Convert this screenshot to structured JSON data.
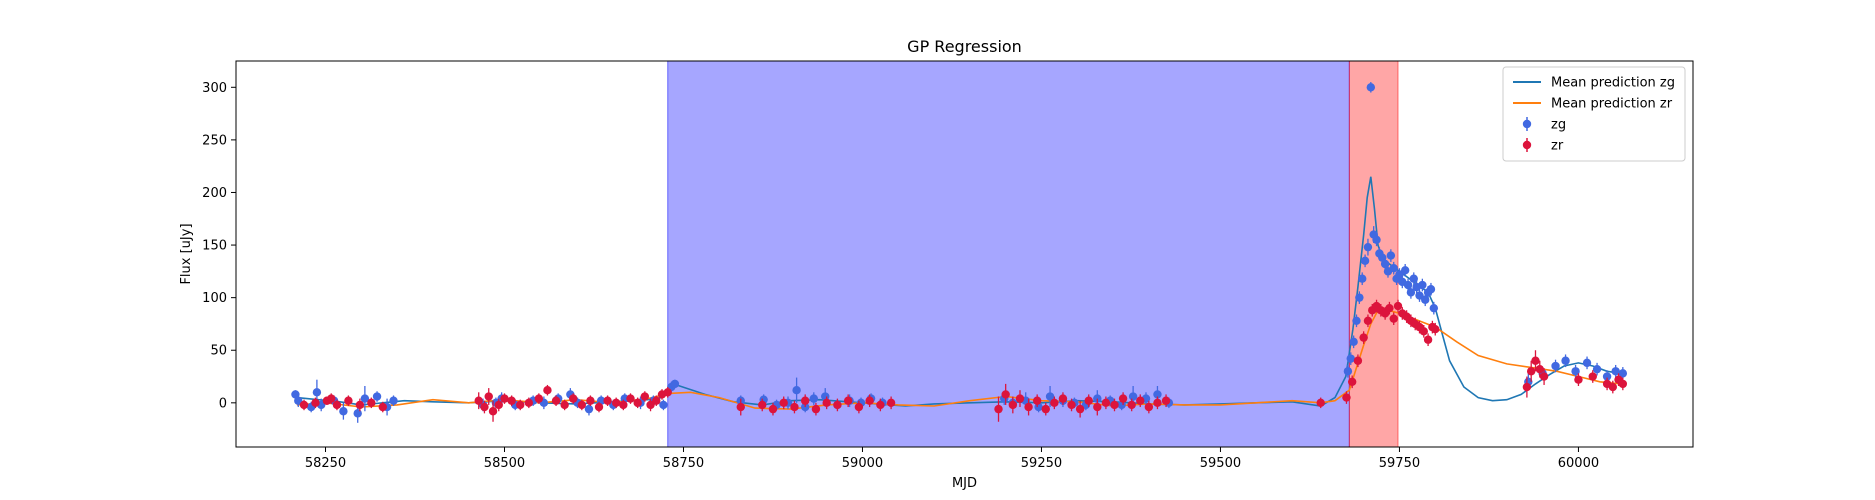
{
  "chart_data": {
    "type": "scatter",
    "title": "GP Regression",
    "xlabel": "MJD",
    "ylabel": "Flux [uJy]",
    "xlim": [
      58125,
      60160
    ],
    "ylim": [
      -42,
      325
    ],
    "xticks": [
      58250,
      58500,
      58750,
      59000,
      59250,
      59500,
      59750,
      60000
    ],
    "yticks": [
      0,
      50,
      100,
      150,
      200,
      250,
      300
    ],
    "grid": false,
    "legend_position": "top-right",
    "colors": {
      "zg_line": "#1f77b4",
      "zr_line": "#ff7f0e",
      "zg_points": "#4169e1",
      "zr_points": "#dc143c",
      "span_blue": "#0000ff",
      "span_red": "#ff0000"
    },
    "spans": [
      {
        "x0": 58728,
        "x1": 59680,
        "color": "#0000ff",
        "opacity": 0.35
      },
      {
        "x0": 59680,
        "x1": 59748,
        "color": "#ff0000",
        "opacity": 0.35
      }
    ],
    "legend": [
      {
        "label": "Mean prediction zg",
        "kind": "line",
        "color": "#1f77b4"
      },
      {
        "label": "Mean prediction zr",
        "kind": "line",
        "color": "#ff7f0e"
      },
      {
        "label": "zg",
        "kind": "errorbar",
        "color": "#4169e1"
      },
      {
        "label": "zr",
        "kind": "errorbar",
        "color": "#dc143c"
      }
    ],
    "series": [
      {
        "name": "Mean prediction zg",
        "kind": "line",
        "color": "#1f77b4",
        "x": [
          58210,
          58240,
          58270,
          58300,
          58330,
          58360,
          58400,
          58450,
          58500,
          58550,
          58600,
          58650,
          58700,
          58720,
          58740,
          58780,
          58820,
          58860,
          58900,
          58940,
          58980,
          59020,
          59060,
          59100,
          59150,
          59200,
          59250,
          59300,
          59350,
          59400,
          59450,
          59500,
          59550,
          59600,
          59640,
          59660,
          59675,
          59685,
          59692,
          59700,
          59705,
          59710,
          59715,
          59720,
          59725,
          59730,
          59740,
          59760,
          59780,
          59790,
          59800,
          59810,
          59820,
          59840,
          59860,
          59880,
          59900,
          59920,
          59940,
          59960,
          59980,
          60000,
          60020,
          60040,
          60060
        ],
        "y": [
          5,
          3,
          1,
          -2,
          0,
          2,
          1,
          0,
          2,
          0,
          -1,
          1,
          3,
          5,
          17,
          8,
          1,
          -2,
          2,
          3,
          1,
          -1,
          -3,
          -1,
          0,
          1,
          0,
          2,
          1,
          -1,
          -2,
          -1,
          0,
          1,
          -3,
          5,
          25,
          70,
          110,
          160,
          195,
          215,
          185,
          150,
          140,
          135,
          130,
          120,
          110,
          105,
          90,
          65,
          40,
          15,
          5,
          2,
          3,
          8,
          18,
          27,
          35,
          38,
          35,
          30,
          28
        ]
      },
      {
        "name": "Mean prediction zr",
        "kind": "line",
        "color": "#ff7f0e",
        "x": [
          58210,
          58250,
          58300,
          58350,
          58400,
          58450,
          58500,
          58550,
          58600,
          58650,
          58700,
          58730,
          58760,
          58800,
          58850,
          58900,
          58950,
          59000,
          59050,
          59100,
          59150,
          59200,
          59250,
          59300,
          59350,
          59400,
          59450,
          59500,
          59550,
          59600,
          59640,
          59660,
          59680,
          59700,
          59710,
          59720,
          59735,
          59750,
          59770,
          59800,
          59830,
          59860,
          59900,
          59940,
          59970,
          60000,
          60030,
          60060
        ],
        "y": [
          -2,
          0,
          -4,
          -2,
          3,
          0,
          3,
          0,
          3,
          0,
          4,
          9,
          10,
          5,
          -5,
          -6,
          -2,
          0,
          -2,
          -3,
          2,
          6,
          2,
          1,
          -3,
          -1,
          -2,
          -2,
          0,
          2,
          0,
          2,
          12,
          55,
          75,
          88,
          88,
          85,
          80,
          72,
          58,
          45,
          37,
          33,
          30,
          25,
          20,
          18
        ]
      },
      {
        "name": "zg",
        "kind": "errorbar",
        "color": "#4169e1",
        "x": [
          58208,
          58212,
          58230,
          58238,
          58244,
          58262,
          58275,
          58295,
          58305,
          58322,
          58336,
          58345,
          58470,
          58488,
          58496,
          58515,
          58540,
          58555,
          58575,
          58592,
          58602,
          58618,
          58635,
          58652,
          58668,
          58690,
          58708,
          58722,
          58733,
          58738,
          58830,
          58862,
          58880,
          58896,
          58908,
          58920,
          58932,
          58948,
          58965,
          58982,
          58998,
          59012,
          59028,
          59198,
          59210,
          59228,
          59246,
          59262,
          59280,
          59296,
          59312,
          59328,
          59346,
          59362,
          59378,
          59396,
          59412,
          59428,
          59678,
          59682,
          59686,
          59690,
          59694,
          59698,
          59702,
          59706,
          59710,
          59714,
          59718,
          59722,
          59726,
          59730,
          59734,
          59738,
          59742,
          59746,
          59750,
          59754,
          59758,
          59762,
          59766,
          59770,
          59774,
          59778,
          59782,
          59786,
          59790,
          59794,
          59798,
          59930,
          59950,
          59968,
          59982,
          59996,
          60012,
          60026,
          60040,
          60052,
          60062
        ],
        "y": [
          8,
          2,
          -4,
          10,
          -2,
          2,
          -8,
          -10,
          4,
          6,
          -4,
          2,
          -2,
          0,
          4,
          -2,
          2,
          0,
          4,
          8,
          0,
          -6,
          2,
          -2,
          4,
          0,
          2,
          -2,
          15,
          18,
          2,
          3,
          -2,
          0,
          12,
          -4,
          4,
          6,
          -2,
          2,
          0,
          4,
          0,
          4,
          0,
          2,
          -4,
          6,
          2,
          0,
          -2,
          4,
          2,
          -2,
          6,
          4,
          8,
          0,
          30,
          42,
          58,
          78,
          100,
          118,
          135,
          148,
          300,
          160,
          155,
          142,
          138,
          132,
          125,
          140,
          128,
          118,
          122,
          115,
          126,
          112,
          105,
          118,
          110,
          102,
          112,
          98,
          105,
          108,
          90,
          20,
          28,
          35,
          40,
          30,
          38,
          32,
          25,
          30,
          28
        ],
        "yerr": [
          4,
          6,
          5,
          12,
          6,
          5,
          8,
          9,
          12,
          5,
          8,
          5,
          6,
          5,
          6,
          5,
          5,
          6,
          5,
          6,
          5,
          6,
          5,
          5,
          5,
          6,
          5,
          5,
          5,
          4,
          5,
          5,
          5,
          6,
          12,
          5,
          6,
          8,
          5,
          6,
          5,
          5,
          5,
          6,
          5,
          8,
          5,
          10,
          6,
          5,
          5,
          8,
          5,
          5,
          10,
          6,
          8,
          5,
          6,
          6,
          6,
          6,
          6,
          6,
          6,
          8,
          5,
          8,
          6,
          6,
          6,
          6,
          6,
          6,
          6,
          6,
          6,
          6,
          6,
          6,
          6,
          6,
          6,
          6,
          6,
          6,
          6,
          6,
          6,
          8,
          6,
          6,
          6,
          6,
          6,
          6,
          6,
          6,
          6
        ]
      },
      {
        "name": "zr",
        "kind": "errorbar",
        "color": "#dc143c",
        "x": [
          58220,
          58236,
          58252,
          58258,
          58266,
          58282,
          58298,
          58314,
          58330,
          58464,
          58472,
          58478,
          58484,
          58492,
          58500,
          58510,
          58522,
          58534,
          58548,
          58560,
          58572,
          58584,
          58596,
          58608,
          58620,
          58632,
          58644,
          58656,
          58666,
          58676,
          58686,
          58696,
          58704,
          58712,
          58720,
          58728,
          58830,
          58860,
          58875,
          58890,
          58905,
          58920,
          58935,
          58950,
          58965,
          58980,
          58995,
          59010,
          59025,
          59040,
          59190,
          59200,
          59210,
          59220,
          59232,
          59244,
          59256,
          59268,
          59280,
          59292,
          59304,
          59316,
          59328,
          59340,
          59352,
          59364,
          59376,
          59388,
          59400,
          59412,
          59424,
          59640,
          59676,
          59684,
          59692,
          59700,
          59706,
          59712,
          59718,
          59724,
          59730,
          59736,
          59742,
          59748,
          59754,
          59760,
          59766,
          59772,
          59778,
          59784,
          59790,
          59796,
          59800,
          59928,
          59934,
          59940,
          59946,
          59952,
          60000,
          60020,
          60040,
          60048,
          60056,
          60062
        ],
        "y": [
          -2,
          0,
          2,
          4,
          -2,
          2,
          -2,
          0,
          -4,
          2,
          -4,
          6,
          -8,
          -2,
          4,
          2,
          -2,
          0,
          4,
          12,
          2,
          -2,
          4,
          -2,
          2,
          -4,
          2,
          0,
          -2,
          4,
          0,
          6,
          -2,
          2,
          8,
          10,
          -4,
          -2,
          -6,
          0,
          -4,
          2,
          -6,
          0,
          -2,
          2,
          -4,
          2,
          -2,
          0,
          -6,
          8,
          -2,
          4,
          -4,
          2,
          -6,
          0,
          4,
          -2,
          -6,
          2,
          -4,
          0,
          -2,
          4,
          -2,
          2,
          -4,
          0,
          2,
          0,
          5,
          20,
          40,
          62,
          78,
          88,
          92,
          88,
          85,
          90,
          80,
          92,
          85,
          82,
          78,
          75,
          72,
          68,
          60,
          72,
          70,
          15,
          30,
          40,
          32,
          25,
          22,
          25,
          18,
          15,
          22,
          18
        ],
        "yerr": [
          5,
          5,
          4,
          5,
          5,
          5,
          6,
          5,
          5,
          8,
          6,
          8,
          10,
          6,
          5,
          5,
          5,
          5,
          5,
          5,
          5,
          5,
          5,
          5,
          5,
          5,
          5,
          5,
          5,
          5,
          5,
          5,
          6,
          5,
          5,
          5,
          8,
          6,
          6,
          6,
          6,
          6,
          6,
          6,
          6,
          6,
          6,
          6,
          6,
          6,
          12,
          10,
          8,
          8,
          8,
          6,
          6,
          6,
          6,
          6,
          8,
          6,
          8,
          6,
          6,
          6,
          6,
          6,
          6,
          6,
          6,
          5,
          6,
          6,
          6,
          6,
          6,
          6,
          6,
          6,
          6,
          6,
          6,
          6,
          6,
          6,
          6,
          6,
          6,
          6,
          6,
          6,
          6,
          10,
          10,
          10,
          8,
          8,
          6,
          6,
          6,
          6,
          6,
          6
        ]
      }
    ]
  }
}
